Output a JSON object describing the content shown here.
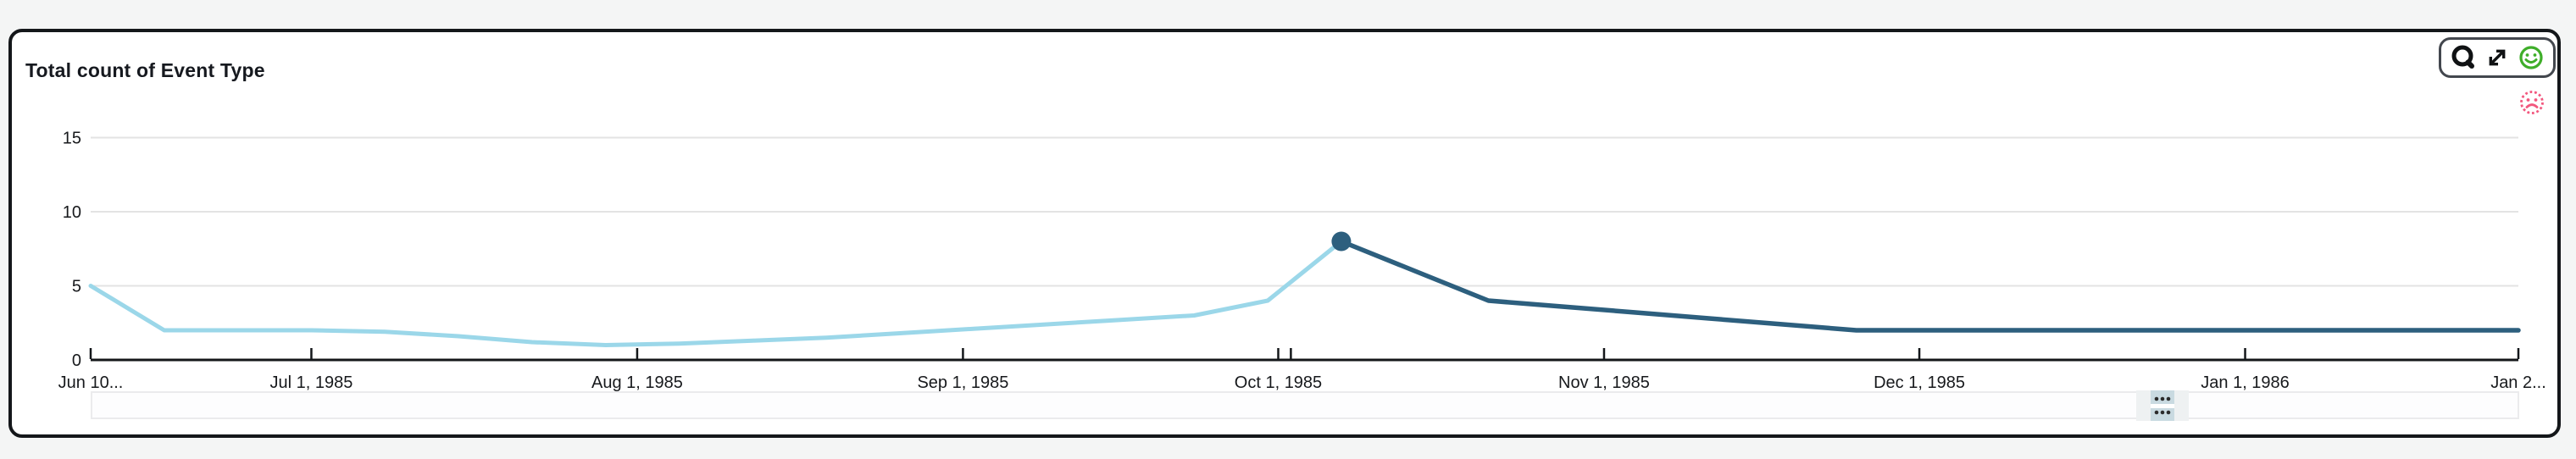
{
  "page": {
    "background": "#f4f5f5"
  },
  "card": {
    "title": "Total count of Event Type",
    "background": "#ffffff",
    "border_color": "#14171a"
  },
  "toolbar": {
    "icons": [
      "zoom-search-icon",
      "expand-icon",
      "feedback-positive-icon"
    ],
    "positive_color": "#3fae2a",
    "negative_color": "#f2577e"
  },
  "chart_data": {
    "type": "line",
    "title": "Total count of Event Type",
    "legend": "none",
    "grid": "horizontal",
    "x_axis": {
      "start": "Jun 10, 1985",
      "end": "Jan 28, 1986",
      "total_days": 231,
      "ticks": [
        {
          "label": "Jun 10...",
          "day": 0
        },
        {
          "label": "Jul 1, 1985",
          "day": 21
        },
        {
          "label": "Aug 1, 1985",
          "day": 52
        },
        {
          "label": "Sep 1, 1985",
          "day": 83
        },
        {
          "label": "Oct 1, 1985",
          "day": 113
        },
        {
          "label": "",
          "day": 114.2
        },
        {
          "label": "Nov 1, 1985",
          "day": 144
        },
        {
          "label": "Dec 1, 1985",
          "day": 174
        },
        {
          "label": "Jan 1, 1986",
          "day": 205
        },
        {
          "label": "Jan 2...",
          "day": 231
        }
      ]
    },
    "y_axis": {
      "ticks": [
        0,
        5,
        10,
        15
      ],
      "gridlines": [
        5,
        10,
        15
      ],
      "ylim": [
        0,
        18
      ]
    },
    "series": [
      {
        "name": "Total count of Event Type",
        "days": [
          0,
          7,
          14,
          21,
          28,
          35,
          42,
          49,
          56,
          63,
          70,
          77,
          84,
          91,
          98,
          105,
          112,
          119,
          126,
          133,
          140,
          147,
          154,
          161,
          168,
          175,
          182,
          189,
          196,
          203,
          210,
          217,
          224,
          231
        ],
        "values": [
          5,
          2,
          2,
          2,
          1.9,
          1.6,
          1.2,
          1,
          1.1,
          1.3,
          1.5,
          1.8,
          2.1,
          2.4,
          2.7,
          3,
          4,
          8,
          6,
          4,
          3.6,
          3.2,
          2.8,
          2.4,
          2,
          2,
          2,
          2,
          2,
          2,
          2,
          2,
          2,
          2
        ],
        "highlight_index": 17,
        "color_before_highlight": "#9bd7e9",
        "color_after_highlight": "#2d5f7e"
      }
    ],
    "highlight_point": {
      "date": "Oct 7, 1985",
      "value": 8,
      "color": "#2d5f7e"
    }
  }
}
